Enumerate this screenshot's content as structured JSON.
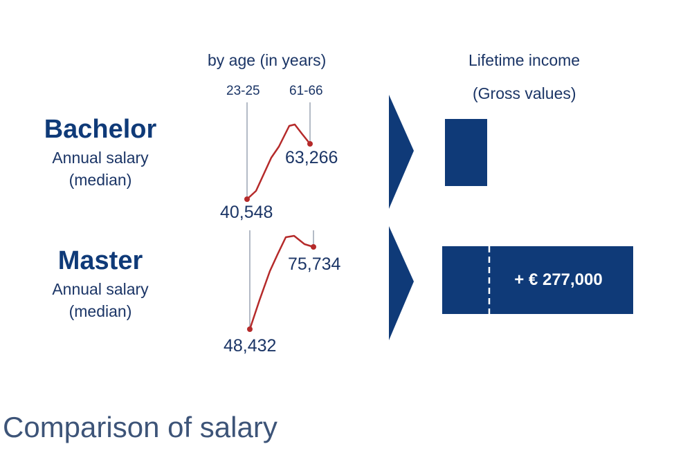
{
  "header": {
    "by_age": "by age (in years)",
    "lifetime_line1": "Lifetime income",
    "lifetime_line2": "(Gross values)"
  },
  "age_ticks": [
    "23-25",
    "61-66"
  ],
  "degrees": [
    {
      "title": "Bachelor",
      "subtitle_line1": "Annual salary",
      "subtitle_line2": "(median)",
      "start_label": "40,548",
      "end_label": "63,266"
    },
    {
      "title": "Master",
      "subtitle_line1": "Annual salary",
      "subtitle_line2": "(median)",
      "start_label": "48,432",
      "end_label": "75,734"
    }
  ],
  "lifetime": {
    "difference_label": "+ € 277,000"
  },
  "page_title": "Comparison of salary",
  "colors": {
    "navy": "#0f3a78",
    "line_red": "#b52a2a",
    "text": "#1b3566",
    "guide": "#9aa4b3"
  },
  "chart_data": {
    "type": "line",
    "x_categories": [
      "23-25",
      "61-66"
    ],
    "series": [
      {
        "name": "Bachelor",
        "start_value": 40548,
        "end_value": 63266
      },
      {
        "name": "Master",
        "start_value": 48432,
        "end_value": 75734
      }
    ],
    "lifetime_difference": "+ € 277,000"
  }
}
